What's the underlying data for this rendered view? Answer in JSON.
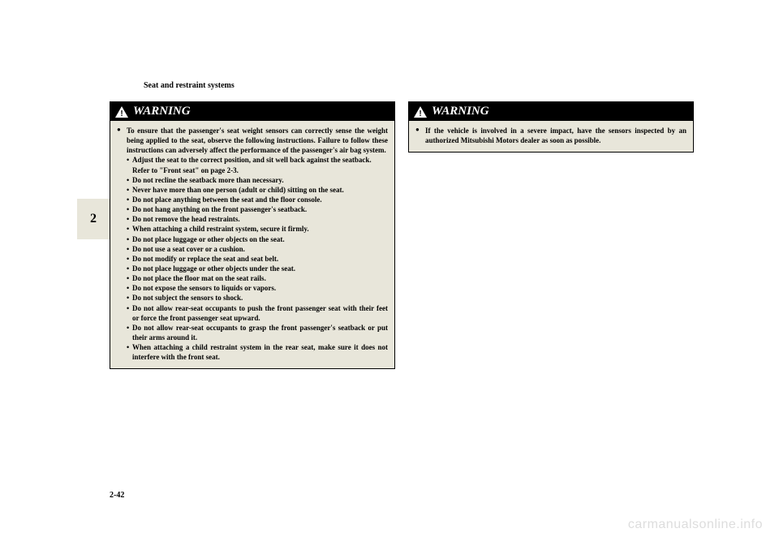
{
  "section_header": "Seat and restraint systems",
  "chapter_num": "2",
  "page_num": "2-42",
  "watermark": "carmanualsonline.info",
  "warning_label": "WARNING",
  "col1": {
    "lead": "To ensure that the passenger's seat weight sensors can correctly sense the weight being applied to the seat, observe the following instructions. Failure to follow these instructions can adversely affect the performance of the passenger's air bag system.",
    "items": [
      {
        "text": "Adjust the seat to the correct position, and sit well back against the seatback.",
        "note": "Refer to \"Front seat\" on page 2-3."
      },
      {
        "text": "Do not recline the seatback more than necessary."
      },
      {
        "text": "Never have more than one person (adult or child) sitting on the seat."
      },
      {
        "text": "Do not place anything between the seat and the floor console."
      },
      {
        "text": "Do not hang anything on the front passenger's seatback."
      },
      {
        "text": "Do not remove the head restraints."
      },
      {
        "text": "When attaching a child restraint system, secure it firmly."
      },
      {
        "text": "Do not place luggage or other objects on the seat."
      },
      {
        "text": "Do not use a seat cover or a cushion."
      },
      {
        "text": "Do not modify or replace the seat and seat belt."
      },
      {
        "text": "Do not place luggage or other objects under the seat."
      },
      {
        "text": "Do not place the floor mat on the seat rails."
      },
      {
        "text": "Do not expose the sensors to liquids or vapors."
      },
      {
        "text": "Do not subject the sensors to shock."
      },
      {
        "text": "Do not allow rear-seat occupants to push the front passenger seat with their feet or force the front passenger seat upward."
      },
      {
        "text": "Do not allow rear-seat occupants to grasp the front passenger's seatback or put their arms around it."
      },
      {
        "text": "When attaching a child restraint system in the rear seat, make sure it does not interfere with the front seat."
      }
    ]
  },
  "col2": {
    "lead": "If the vehicle is involved in a severe impact, have the sensors inspected by an authorized Mitsubishi Motors dealer as soon as possible."
  }
}
